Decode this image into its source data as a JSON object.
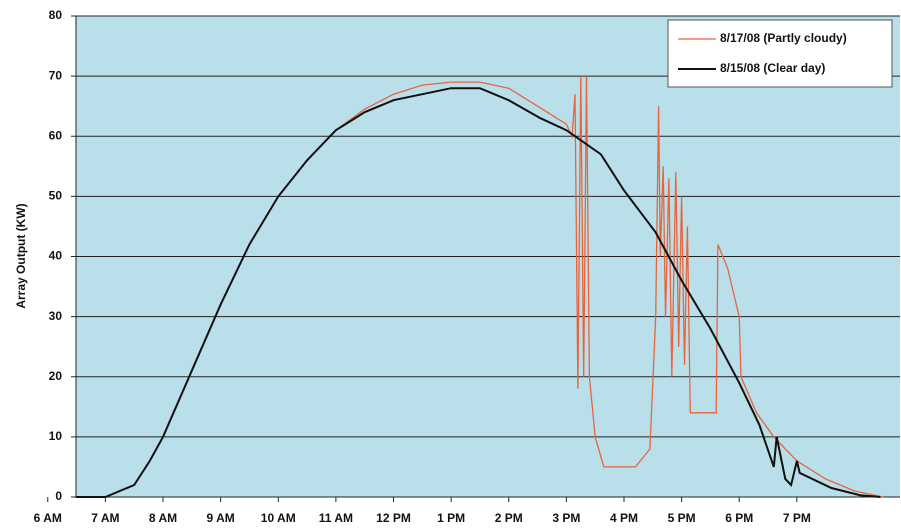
{
  "chart_data": {
    "type": "line",
    "y_label": "Array Output (KW)",
    "xlim": [
      6.49,
      20.79
    ],
    "ylim": [
      0,
      80
    ],
    "yticks": [
      0,
      10,
      20,
      30,
      40,
      50,
      60,
      70,
      80
    ],
    "xticks": [
      {
        "value": 6,
        "label": "6 AM"
      },
      {
        "value": 7,
        "label": "7 AM"
      },
      {
        "value": 8,
        "label": "8 AM"
      },
      {
        "value": 9,
        "label": "9 AM"
      },
      {
        "value": 10,
        "label": "10 AM"
      },
      {
        "value": 11,
        "label": "11 AM"
      },
      {
        "value": 12,
        "label": "12 PM"
      },
      {
        "value": 13,
        "label": "1 PM"
      },
      {
        "value": 14,
        "label": "2 PM"
      },
      {
        "value": 15,
        "label": "3 PM"
      },
      {
        "value": 16,
        "label": "4 PM"
      },
      {
        "value": 17,
        "label": "5 PM"
      },
      {
        "value": 18,
        "label": "6 PM"
      },
      {
        "value": 19,
        "label": "7 PM"
      }
    ],
    "grid": true,
    "legend": "upper right",
    "background": "#b9e0ea",
    "series": [
      {
        "name": "8/17/08 (Partly cloudy)",
        "color": "#e8643c",
        "x": [
          6.49,
          7.0,
          7.5,
          7.77,
          8.0,
          8.5,
          9.0,
          9.5,
          10.0,
          10.5,
          11.0,
          11.5,
          12.0,
          12.5,
          13.0,
          13.5,
          14.0,
          14.5,
          15.0,
          15.1,
          15.15,
          15.2,
          15.25,
          15.3,
          15.35,
          15.4,
          15.5,
          15.65,
          16.2,
          16.45,
          16.55,
          16.6,
          16.63,
          16.68,
          16.72,
          16.78,
          16.83,
          16.9,
          16.95,
          17.0,
          17.05,
          17.1,
          17.15,
          17.6,
          17.63,
          17.8,
          18.0,
          18.03,
          18.3,
          18.6,
          18.8,
          19.0,
          19.5,
          20.0,
          20.5
        ],
        "values": [
          0,
          0,
          2,
          6,
          10,
          21,
          32,
          42,
          50,
          56,
          61,
          64.5,
          67,
          68.5,
          69,
          69,
          68,
          65,
          62,
          60,
          67,
          18,
          70,
          20,
          70,
          20,
          10,
          5,
          5,
          8,
          30,
          65,
          40,
          55,
          30,
          53,
          20,
          54,
          25,
          50,
          22,
          45,
          14,
          14,
          42,
          38,
          30,
          20,
          14,
          10,
          8,
          6,
          3,
          1,
          0
        ]
      },
      {
        "name": "8/15/08 (Clear day)",
        "color": "#111111",
        "x": [
          6.49,
          7.0,
          7.5,
          7.77,
          8.0,
          8.5,
          9.0,
          9.5,
          10.0,
          10.5,
          11.0,
          11.5,
          12.0,
          12.5,
          13.0,
          13.5,
          14.0,
          14.55,
          15.0,
          15.6,
          16.0,
          16.55,
          17.0,
          17.5,
          18.0,
          18.35,
          18.6,
          18.65,
          18.8,
          18.9,
          19.0,
          19.05,
          19.6,
          20.1,
          20.45
        ],
        "values": [
          0,
          0,
          2,
          6,
          10,
          21,
          32,
          42,
          50,
          56,
          61,
          64,
          66,
          67,
          68,
          68,
          66,
          63,
          61,
          57,
          51,
          44,
          36,
          28,
          19,
          12,
          5,
          10,
          3,
          2,
          6,
          4,
          1.5,
          0.3,
          0
        ]
      }
    ]
  }
}
